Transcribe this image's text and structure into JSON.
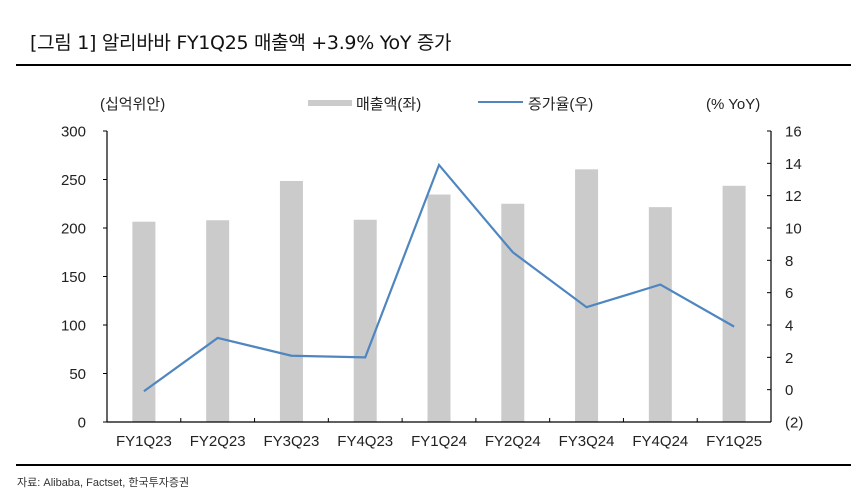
{
  "header": {
    "title": "[그림 1] 알리바바 FY1Q25 매출액 +3.9% YoY 증가"
  },
  "footer": {
    "source": "자료: Alibaba, Factset, 한국투자증권"
  },
  "colors": {
    "bar": "#cbcbcb",
    "line": "#4f86c0",
    "axis": "#000000",
    "rule": "#000000"
  },
  "chart_data": {
    "type": "bar+line",
    "title": "[그림 1] 알리바바 FY1Q25 매출액 +3.9% YoY 증가",
    "categories": [
      "FY1Q23",
      "FY2Q23",
      "FY3Q23",
      "FY4Q23",
      "FY1Q24",
      "FY2Q24",
      "FY3Q24",
      "FY4Q24",
      "FY1Q25"
    ],
    "series": [
      {
        "name": "매출액(좌)",
        "type": "bar",
        "axis": "left",
        "values": [
          206.5,
          208.0,
          248.5,
          208.5,
          234.5,
          225.0,
          260.5,
          221.5,
          243.5
        ]
      },
      {
        "name": "증가율(우)",
        "type": "line",
        "axis": "right",
        "values": [
          -0.1,
          3.2,
          2.1,
          2.0,
          13.9,
          8.5,
          5.1,
          6.5,
          3.9
        ]
      }
    ],
    "ylabel_left": "(십억위안)",
    "ylabel_right": "(% YoY)",
    "ylim_left": [
      0,
      300
    ],
    "yticks_left": [
      "0",
      "50",
      "100",
      "150",
      "200",
      "250",
      "300"
    ],
    "ylim_right": [
      -2,
      16
    ],
    "yticks_right": [
      "(2)",
      "0",
      "2",
      "4",
      "6",
      "8",
      "10",
      "12",
      "14",
      "16"
    ],
    "grid": false,
    "legend_position": "top-center",
    "legend": [
      "매출액(좌)",
      "증가율(우)"
    ]
  }
}
